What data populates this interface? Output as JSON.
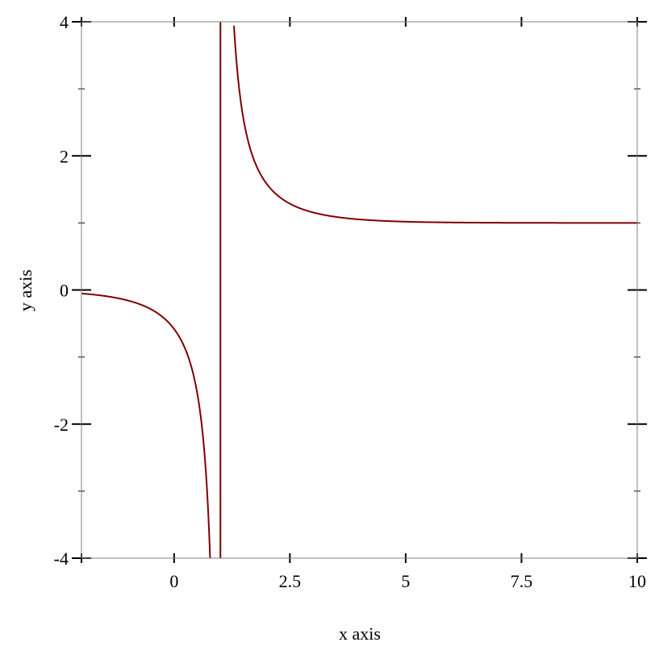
{
  "chart_data": {
    "type": "line",
    "title": "",
    "xlabel": "x axis",
    "ylabel": "y axis",
    "xlim": [
      -2,
      10
    ],
    "ylim": [
      -4,
      4
    ],
    "grid": false,
    "x_ticks": [
      {
        "v": 0,
        "label": "0"
      },
      {
        "v": 2.5,
        "label": "2.5"
      },
      {
        "v": 5,
        "label": "5"
      },
      {
        "v": 7.5,
        "label": "7.5"
      },
      {
        "v": 10,
        "label": "10"
      }
    ],
    "y_ticks": [
      {
        "v": -4,
        "label": "-4"
      },
      {
        "v": -2,
        "label": "-2"
      },
      {
        "v": 0,
        "label": "0"
      },
      {
        "v": 2,
        "label": "2"
      },
      {
        "v": 4,
        "label": "4"
      }
    ],
    "y_minor_ticks": [
      -3,
      -1,
      1,
      3
    ],
    "series": [
      {
        "function": "1/(1-exp(-(x-1)))",
        "vertical_asymptote": 1,
        "horizontal_asymptote": 1,
        "color": "#7f0000",
        "sample_points": [
          [
            -2,
            -0.052
          ],
          [
            0,
            -0.582
          ],
          [
            0.5,
            -1.541
          ],
          [
            0.8,
            -4.52
          ],
          [
            1.3,
            3.86
          ],
          [
            1.5,
            2.541
          ],
          [
            2,
            1.582
          ],
          [
            2.5,
            1.287
          ],
          [
            5,
            1.019
          ],
          [
            10,
            1.0001
          ]
        ]
      }
    ],
    "axis_color": "#808080",
    "tick_color": "#000000"
  }
}
